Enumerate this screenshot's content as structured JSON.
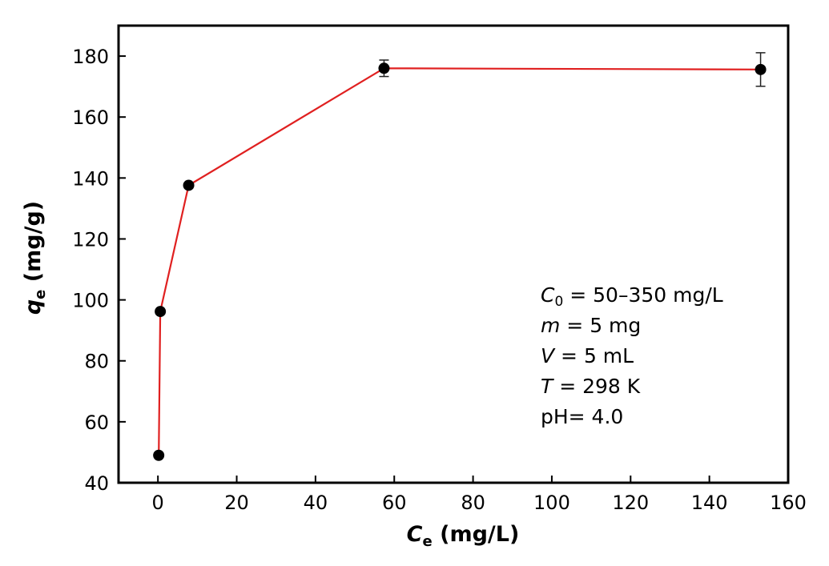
{
  "chart_data": {
    "type": "scatter",
    "xlabel": {
      "var": "C",
      "sub": "e",
      "unit": "(mg/L)"
    },
    "ylabel": {
      "var": "q",
      "sub": "e",
      "unit": "(mg/g)"
    },
    "xlim": [
      -10,
      160
    ],
    "ylim": [
      40,
      190
    ],
    "xticks": [
      0,
      20,
      40,
      60,
      80,
      100,
      120,
      140,
      160
    ],
    "yticks": [
      40,
      60,
      80,
      100,
      120,
      140,
      160,
      180
    ],
    "grid": false,
    "legend": "none",
    "series": [
      {
        "x": [
          0.2,
          0.6,
          7.8,
          57.4,
          153.0
        ],
        "y": [
          49.0,
          96.2,
          137.6,
          176.0,
          175.6
        ],
        "yerr": [
          0,
          0,
          0,
          2.7,
          5.5
        ],
        "marker_color": "#000000",
        "line_color": "#e02020"
      }
    ],
    "annotations": [
      {
        "var": "C",
        "sub": "0",
        "rest": " = 50–350 mg/L"
      },
      {
        "var": "m",
        "sub": "",
        "rest": " = 5 mg"
      },
      {
        "var": "V",
        "sub": "",
        "rest": " = 5 mL"
      },
      {
        "var": "T",
        "sub": "",
        "rest": " = 298 K"
      },
      {
        "var": "",
        "sub": "",
        "rest": "pH= 4.0"
      }
    ]
  }
}
